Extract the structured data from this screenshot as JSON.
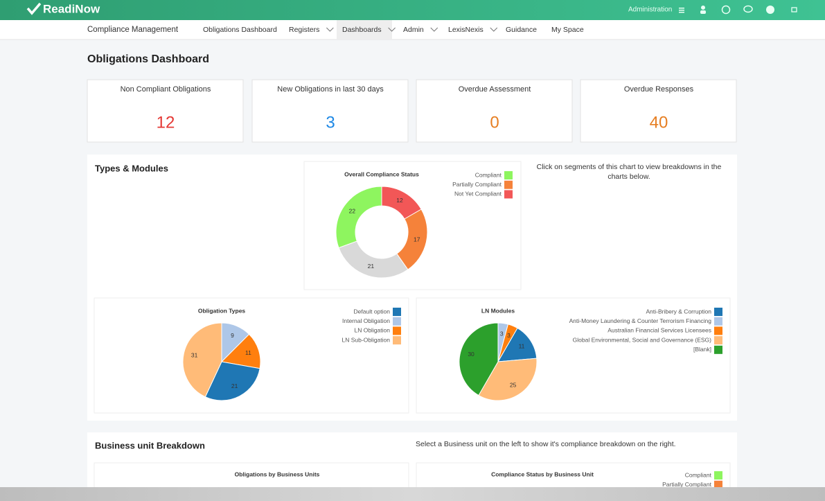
{
  "header": {
    "brand": "ReadiNow",
    "admin": "Administration"
  },
  "nav": {
    "app": "Compliance Management",
    "items": [
      "Obligations Dashboard",
      "Registers",
      "Dashboards",
      "Admin",
      "LexisNexis",
      "Guidance",
      "My Space"
    ]
  },
  "page_title": "Obligations Dashboard",
  "cards": [
    {
      "label": "Non Compliant Obligations",
      "value": 12,
      "color": "#e53935"
    },
    {
      "label": "New Obligations in last 30 days",
      "value": 3,
      "color": "#1e88e5"
    },
    {
      "label": "Overdue Assessment",
      "value": 0,
      "color": "#e67e22"
    },
    {
      "label": "Overdue Responses",
      "value": 40,
      "color": "#e67e22"
    }
  ],
  "types_panel": {
    "title": "Types & Modules",
    "hint": "Click on segments of this chart to view breakdowns in the charts below."
  },
  "business_panel": {
    "title": "Business unit Breakdown",
    "hint": "Select a Business unit on the left to show it's compliance breakdown on the right."
  },
  "chart_data": [
    {
      "type": "donut",
      "title": "Overall Compliance Status",
      "categories": [
        "Compliant",
        "Partially Compliant",
        "Not Yet Compliant",
        null
      ],
      "values": [
        22,
        17,
        12,
        21
      ],
      "colors": [
        "#8ef55f",
        "#f5823a",
        "#f25757",
        "#d9d9d9"
      ]
    },
    {
      "type": "pie",
      "title": "Obligation Types",
      "categories": [
        "Default option",
        "Internal Obligation",
        "LN Obligation",
        "LN Sub-Obligation"
      ],
      "values": [
        21,
        9,
        11,
        31
      ],
      "colors": [
        "#1f77b4",
        "#aec7e8",
        "#ff7f0e",
        "#ffbb78"
      ]
    },
    {
      "type": "pie",
      "title": "LN Modules",
      "categories": [
        "Anti-Bribery & Corruption",
        "Anti-Money Laundering & Counter Terrorism Financing",
        "Australian Financial Services Licensees",
        "Global Environmental, Social and Governance (ESG)",
        "[Blank]"
      ],
      "values": [
        11,
        3,
        3,
        25,
        30
      ],
      "colors": [
        "#1f77b4",
        "#aec7e8",
        "#ff7f0e",
        "#ffbb78",
        "#2ca02c"
      ]
    },
    {
      "type": "bar",
      "title": "Obligations by Business Units"
    },
    {
      "type": "bar",
      "title": "Compliance Status by Business Unit",
      "series": [
        {
          "name": "Compliant",
          "color": "#8ef55f"
        },
        {
          "name": "Partially Compliant",
          "color": "#f5823a"
        }
      ]
    }
  ]
}
